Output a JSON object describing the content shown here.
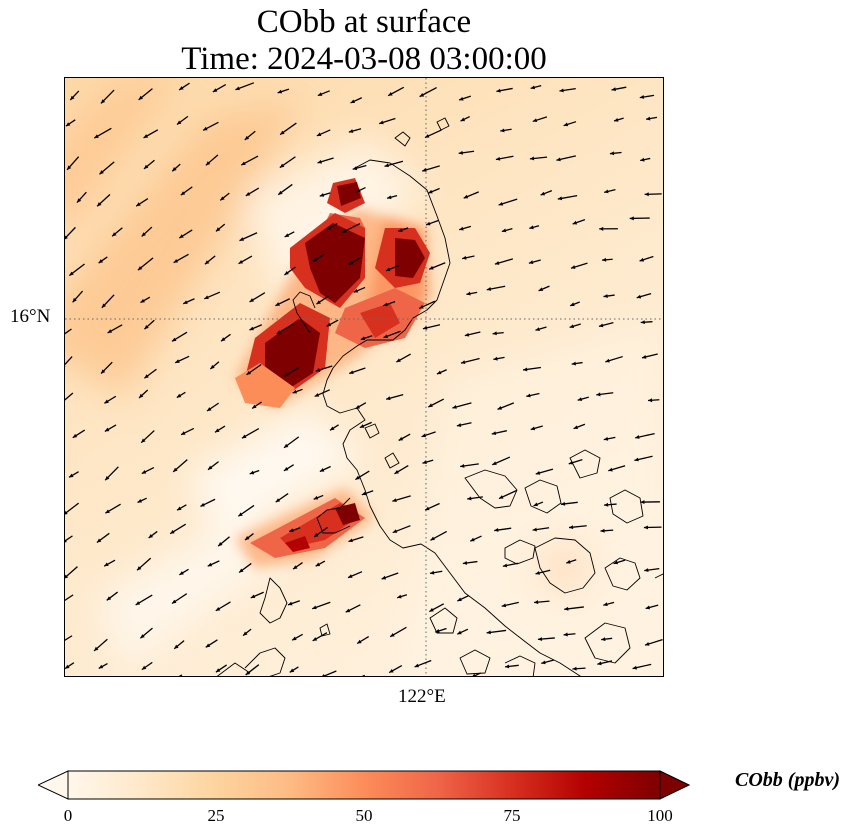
{
  "title_line1": "CObb at surface",
  "title_line2": "Time: 2024-03-08 03:00:00",
  "axes": {
    "lat_label": "16°N",
    "lon_label": "122°E"
  },
  "colorbar": {
    "label": "CObb (ppbv)",
    "ticks": [
      "0",
      "25",
      "50",
      "75",
      "100"
    ],
    "min": 0,
    "max": 100,
    "colormap": "OrRd",
    "extend": "both",
    "colors": [
      "#fff7ec",
      "#fee8c8",
      "#fdd49e",
      "#fdbb84",
      "#fc8d59",
      "#ef6548",
      "#d7301f",
      "#b30000",
      "#7f0000"
    ]
  },
  "map": {
    "region": "Northern Luzon, Philippines",
    "gridlines": "dotted",
    "wind_vectors": true,
    "background_level_ppbv": 15
  }
}
